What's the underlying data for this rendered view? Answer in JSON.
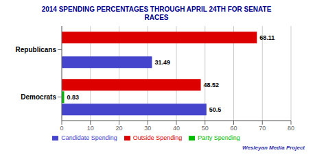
{
  "chart_data": {
    "type": "bar",
    "orientation": "horizontal",
    "title": "2014 SPENDING PERCENTAGES THROUGH APRIL 24TH FOR SENATE\nRACES",
    "categories": [
      "Republicans",
      "Democrats"
    ],
    "series": [
      {
        "name": "Outside Spending",
        "color": "#DD0000",
        "values": [
          68.11,
          48.52
        ]
      },
      {
        "name": "Party Spending",
        "color": "#00BB00",
        "values": [
          0.0,
          0.83
        ],
        "value_labels": [
          null,
          "0.83"
        ]
      },
      {
        "name": "Candidate Spending",
        "color": "#4444CC",
        "values": [
          31.49,
          50.5
        ]
      }
    ],
    "xlim": [
      0,
      80
    ],
    "xticks": [
      0,
      10,
      20,
      30,
      40,
      50,
      60,
      70,
      80
    ],
    "grid": true,
    "legend": "bottom",
    "data_labels": true,
    "annotations": [
      "Wesleyan Media Project"
    ]
  }
}
